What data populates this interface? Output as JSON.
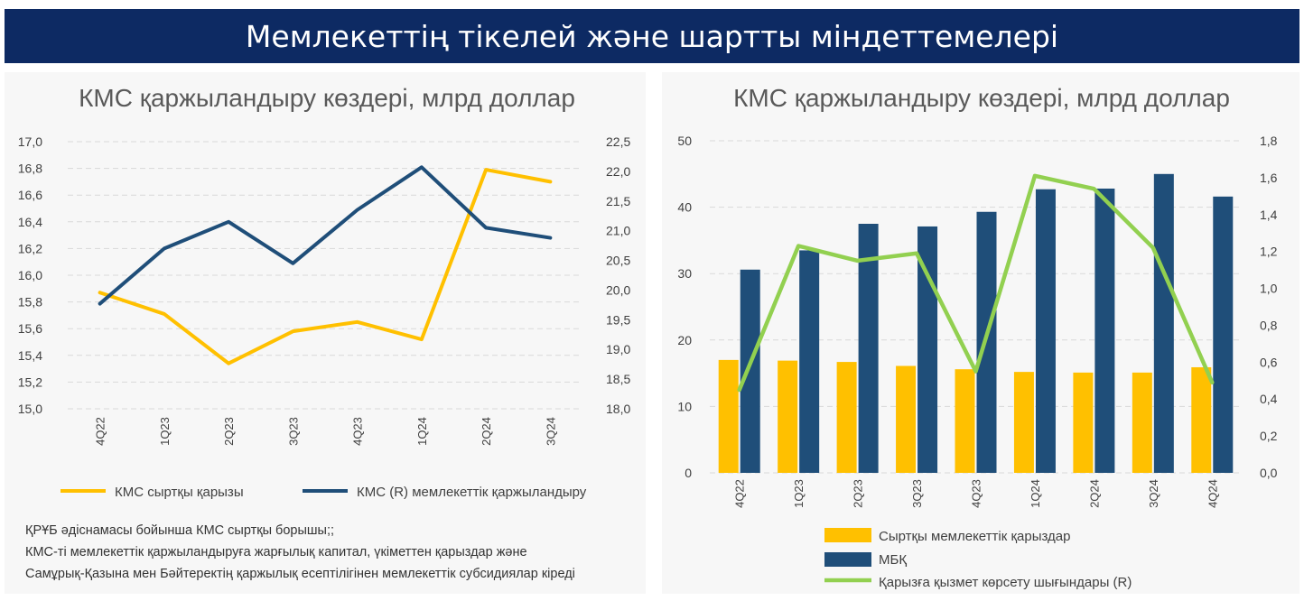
{
  "header": {
    "title": "Мемлекеттің тікелей және шартты міндеттемелері"
  },
  "colors": {
    "yellow": "#ffc000",
    "navy": "#1f4e79",
    "green": "#92d050",
    "banner": "#0d2a63"
  },
  "chart_data": [
    {
      "type": "line",
      "title": "КМС қаржыландыру көздері, млрд доллар",
      "categories": [
        "4Q22",
        "1Q23",
        "2Q23",
        "3Q23",
        "4Q23",
        "1Q24",
        "2Q24",
        "3Q24"
      ],
      "y_left": {
        "min": 15.0,
        "max": 17.0,
        "ticks": [
          "15,0",
          "15,2",
          "15,4",
          "15,6",
          "15,8",
          "16,0",
          "16,2",
          "16,4",
          "16,6",
          "16,8",
          "17,0"
        ]
      },
      "y_right": {
        "min": 18.0,
        "max": 22.5,
        "ticks": [
          "18,0",
          "18,5",
          "19,0",
          "19,5",
          "20,0",
          "20,5",
          "21,0",
          "21,5",
          "22,0",
          "22,5"
        ]
      },
      "grid": true,
      "legend_position": "bottom",
      "series": [
        {
          "name": "КМС сыртқы қарызы",
          "axis": "left",
          "color": "#ffc000",
          "values": [
            15.87,
            15.71,
            15.34,
            15.58,
            15.65,
            15.52,
            16.79,
            16.7
          ]
        },
        {
          "name": "КМС (R) мемлекеттік қаржыландыру",
          "axis": "right",
          "color": "#1f4e79",
          "values": [
            19.77,
            20.7,
            21.15,
            20.45,
            21.35,
            22.07,
            21.05,
            20.88
          ]
        }
      ]
    },
    {
      "type": "bar",
      "title": "КМС қаржыландыру көздері, млрд доллар",
      "categories": [
        "4Q22",
        "1Q23",
        "2Q23",
        "3Q23",
        "4Q23",
        "1Q24",
        "2Q24",
        "3Q24",
        "4Q24"
      ],
      "y_left": {
        "min": 0,
        "max": 50,
        "ticks": [
          "0",
          "10",
          "20",
          "30",
          "40",
          "50"
        ]
      },
      "y_right": {
        "min": 0.0,
        "max": 1.8,
        "ticks": [
          "0,0",
          "0,2",
          "0,4",
          "0,6",
          "0,8",
          "1,0",
          "1,2",
          "1,4",
          "1,6",
          "1,8"
        ]
      },
      "grid": true,
      "legend_position": "bottom",
      "series": [
        {
          "name": "Сыртқы мемлекеттік қарыздар",
          "kind": "bar",
          "axis": "left",
          "color": "#ffc000",
          "values": [
            17.0,
            16.9,
            16.7,
            16.1,
            15.6,
            15.2,
            15.1,
            15.1,
            15.9
          ]
        },
        {
          "name": "МБҚ",
          "kind": "bar",
          "axis": "left",
          "color": "#1f4e79",
          "values": [
            30.6,
            33.5,
            37.5,
            37.1,
            39.3,
            42.7,
            42.8,
            45.0,
            41.6
          ]
        },
        {
          "name": "Қарызға қызмет көрсету шығындары (R)",
          "kind": "line",
          "axis": "right",
          "color": "#92d050",
          "values": [
            0.45,
            1.23,
            1.15,
            1.19,
            0.55,
            1.61,
            1.54,
            1.22,
            0.49
          ]
        }
      ]
    }
  ],
  "notes": [
    "ҚРҰБ әдіснамасы бойынша КМС сыртқы борышы;;",
    "КМС-ті мемлекеттік қаржыландыруға жарғылық капитал, үкіметтен қарыздар және",
    "Самұрық-Қазына мен Бәйтеректің қаржылық есептілігінен мемлекеттік субсидиялар кіреді"
  ]
}
